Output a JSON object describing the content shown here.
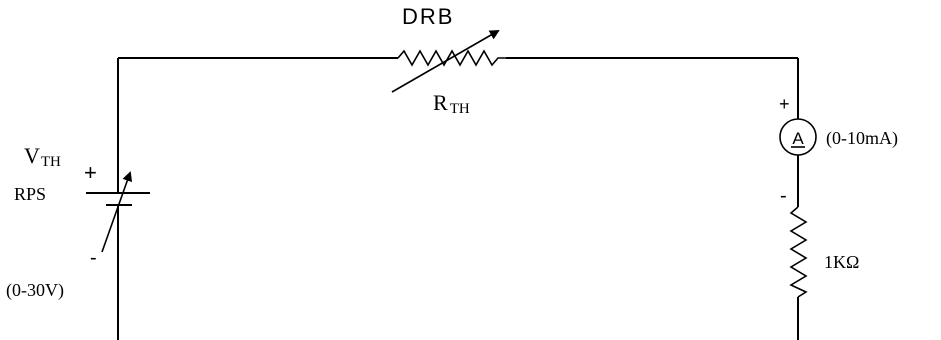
{
  "resistor_top": {
    "label": "DRB",
    "name_main": "R",
    "name_sub": "TH"
  },
  "source": {
    "name_main": "V",
    "name_sub": "TH",
    "label": "RPS",
    "plus": "+",
    "minus": "-",
    "range": "(0-30V)"
  },
  "ammeter": {
    "symbol": "A",
    "range": "(0-10mA)",
    "plus": "+",
    "minus": "-"
  },
  "load_resistor": {
    "label": "1KΩ"
  }
}
